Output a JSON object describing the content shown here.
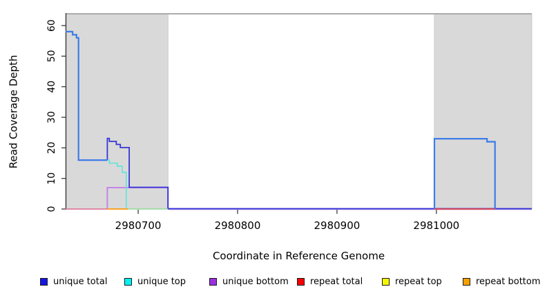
{
  "figure": {
    "x_axis_title": "Coordinate in Reference Genome",
    "y_axis_title": "Read Coverage Depth"
  },
  "chart_data": {
    "type": "line",
    "subtype": "step-coverage-depth",
    "title": "",
    "xlabel": "Coordinate in Reference Genome",
    "ylabel": "Read Coverage Depth",
    "xlim": [
      2980627,
      2981096
    ],
    "ylim": [
      0,
      63.85
    ],
    "xticks": [
      2980700,
      2980800,
      2980900,
      2981000
    ],
    "yticks": [
      0,
      10,
      20,
      30,
      40,
      50,
      60
    ],
    "grid": false,
    "legend_position": "bottom",
    "legend": [
      {
        "label": "unique total",
        "color": "#1515e8"
      },
      {
        "label": "unique top",
        "color": "#00f2f2"
      },
      {
        "label": "unique bottom",
        "color": "#9a30e0"
      },
      {
        "label": "repeat total",
        "color": "#f50000"
      },
      {
        "label": "repeat top",
        "color": "#f5f500"
      },
      {
        "label": "repeat bottom",
        "color": "#f5a000"
      }
    ],
    "shaded_regions": [
      {
        "x0": 2980627,
        "x1": 2980730,
        "fill": "#d9d9d9",
        "edge": "#c4c4c4"
      },
      {
        "x0": 2980998,
        "x1": 2981096,
        "fill": "#d9d9d9",
        "edge": "#c4c4c4"
      }
    ],
    "top_boundary_line": {
      "y": 63.85,
      "color": "#ababab"
    },
    "series": [
      {
        "name": "unique-bottom-zero-run",
        "color": "#a886e8",
        "lw": 2.4,
        "pts": [
          [
            2980730,
            0
          ],
          [
            2981096,
            0
          ]
        ]
      },
      {
        "name": "unique-bottom-step",
        "color": "#c584e8",
        "lw": 2.0,
        "pts": [
          [
            2980669,
            0
          ],
          [
            2980669,
            7
          ],
          [
            2980730,
            7
          ],
          [
            2980730,
            0
          ]
        ]
      },
      {
        "name": "unique-top-step",
        "color": "#5ce4dc",
        "lw": 1.6,
        "pts": [
          [
            2980669,
            16
          ],
          [
            2980671,
            16
          ],
          [
            2980671,
            15
          ],
          [
            2980679,
            15
          ],
          [
            2980679,
            14
          ],
          [
            2980684,
            14
          ],
          [
            2980684,
            12
          ],
          [
            2980688,
            12
          ],
          [
            2980688,
            0
          ]
        ]
      },
      {
        "name": "unique-total-step",
        "color": "#3534d6",
        "lw": 1.8,
        "dy": -0.5,
        "pts": [
          [
            2980669,
            16
          ],
          [
            2980669,
            23
          ],
          [
            2980671,
            23
          ],
          [
            2980671,
            22
          ],
          [
            2980678,
            22
          ],
          [
            2980678,
            21
          ],
          [
            2980682,
            21
          ],
          [
            2980682,
            20
          ],
          [
            2980691,
            20
          ],
          [
            2980691,
            7
          ],
          [
            2980730,
            7
          ],
          [
            2980730,
            0
          ],
          [
            2981096,
            0
          ]
        ]
      },
      {
        "name": "total-coverage-left",
        "color": "#3d7ce8",
        "lw": 2.2,
        "pts": [
          [
            2980627,
            58
          ],
          [
            2980634,
            58
          ],
          [
            2980634,
            57
          ],
          [
            2980638,
            57
          ],
          [
            2980638,
            56
          ],
          [
            2980640,
            56
          ],
          [
            2980640,
            16
          ],
          [
            2980669,
            16
          ]
        ]
      },
      {
        "name": "total-coverage-right",
        "color": "#3d7ce8",
        "lw": 2.2,
        "pts": [
          [
            2980998,
            0
          ],
          [
            2980998,
            23
          ],
          [
            2981051,
            23
          ],
          [
            2981051,
            22
          ],
          [
            2981059,
            22
          ],
          [
            2981059,
            0
          ]
        ]
      },
      {
        "name": "repeat-total-left",
        "color": "#dd7a9a",
        "lw": 1.8,
        "pts": [
          [
            2980627,
            0
          ],
          [
            2980669,
            0
          ]
        ]
      },
      {
        "name": "repeat-total-right",
        "color": "#e84545",
        "lw": 1.8,
        "pts": [
          [
            2980998,
            0
          ],
          [
            2981059,
            0
          ]
        ]
      },
      {
        "name": "repeat-bottom-zero-run",
        "color": "#ffa124",
        "lw": 2.0,
        "pts": [
          [
            2980669,
            0
          ],
          [
            2980690,
            0
          ]
        ]
      },
      {
        "name": "green-zero-run",
        "color": "#90d898",
        "lw": 1.6,
        "pts": [
          [
            2980690,
            0
          ],
          [
            2980730,
            0
          ]
        ]
      }
    ]
  }
}
